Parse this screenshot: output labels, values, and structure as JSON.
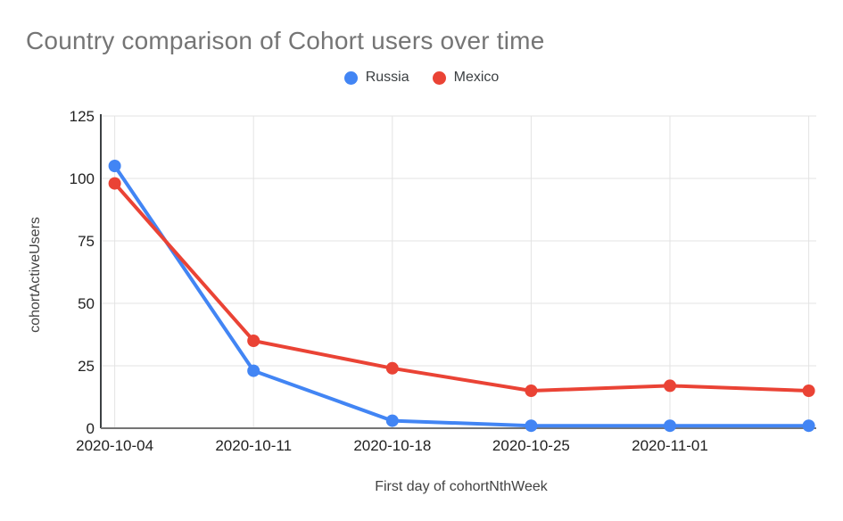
{
  "chart_data": {
    "type": "line",
    "title": "Country comparison of Cohort users over time",
    "xlabel": "First day of cohortNthWeek",
    "ylabel": "cohortActiveUsers",
    "x_tick_labels": [
      "2020-10-04",
      "2020-10-11",
      "2020-10-18",
      "2020-10-25",
      "2020-11-01"
    ],
    "num_points": 6,
    "series": [
      {
        "name": "Russia",
        "color": "#4285F4",
        "values": [
          105,
          23,
          3,
          1,
          1,
          1
        ]
      },
      {
        "name": "Mexico",
        "color": "#EA4335",
        "values": [
          98,
          35,
          24,
          15,
          17,
          15
        ]
      }
    ],
    "y_ticks": [
      0,
      25,
      50,
      75,
      100,
      125
    ],
    "ylim": [
      0,
      125
    ],
    "grid": true,
    "legend_position": "top",
    "colors": {
      "title_text": "#757575",
      "tick_text": "#212121",
      "axis_title_text": "#424242",
      "legend_text": "#3C4043",
      "gridline": "#E3E3E3",
      "y_axis_line": "#3C4043",
      "x_axis_line": "#757575",
      "background": "#FFFFFF"
    }
  }
}
